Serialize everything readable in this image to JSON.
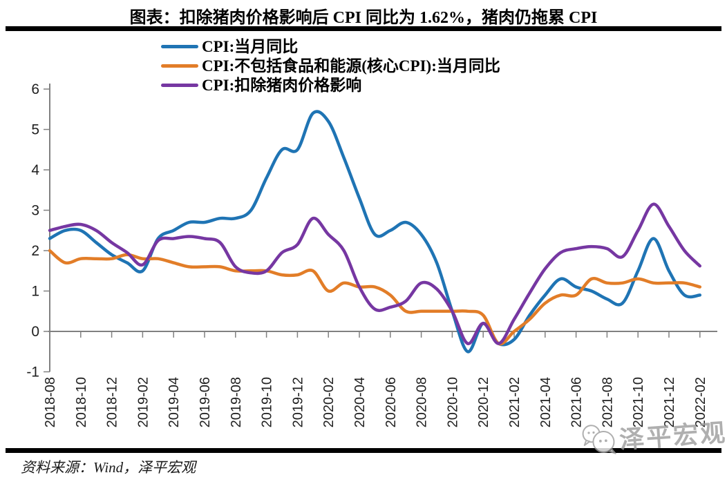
{
  "title": "图表：扣除猪肉价格影响后 CPI 同比为 1.62%，猪肉仍拖累 CPI",
  "source_note": "资料来源：Wind，泽平宏观",
  "watermark": {
    "icon": "wechat-chat-bubbles",
    "text": "泽平宏观"
  },
  "chart_data": {
    "type": "line",
    "title": "图表：扣除猪肉价格影响后 CPI 同比为 1.62%，猪肉仍拖累 CPI",
    "xlabel": "",
    "ylabel": "",
    "ylim": [
      -1,
      6
    ],
    "y_ticks": [
      6,
      5,
      4,
      3,
      2,
      1,
      0,
      -1
    ],
    "grid": false,
    "legend_position": "top-left",
    "x": [
      "2018-08",
      "2018-09",
      "2018-10",
      "2018-11",
      "2018-12",
      "2019-01",
      "2019-02",
      "2019-03",
      "2019-04",
      "2019-05",
      "2019-06",
      "2019-07",
      "2019-08",
      "2019-09",
      "2019-10",
      "2019-11",
      "2019-12",
      "2020-01",
      "2020-02",
      "2020-03",
      "2020-04",
      "2020-05",
      "2020-06",
      "2020-07",
      "2020-08",
      "2020-09",
      "2020-10",
      "2020-11",
      "2020-12",
      "2021-01",
      "2021-02",
      "2021-03",
      "2021-04",
      "2021-05",
      "2021-06",
      "2021-07",
      "2021-08",
      "2021-09",
      "2021-10",
      "2021-11",
      "2021-12",
      "2022-01",
      "2022-02"
    ],
    "x_tick_labels": [
      "2018-08",
      "2018-10",
      "2018-12",
      "2019-02",
      "2019-04",
      "2019-06",
      "2019-08",
      "2019-10",
      "2019-12",
      "2020-02",
      "2020-04",
      "2020-06",
      "2020-08",
      "2020-10",
      "2020-12",
      "2021-02",
      "2021-04",
      "2021-06",
      "2021-08",
      "2021-10",
      "2021-12",
      "2022-02"
    ],
    "series": [
      {
        "name": "CPI:当月同比",
        "color": "#1F74B4",
        "values": [
          2.3,
          2.5,
          2.5,
          2.2,
          1.9,
          1.7,
          1.5,
          2.3,
          2.5,
          2.7,
          2.7,
          2.8,
          2.8,
          3.0,
          3.8,
          4.5,
          4.5,
          5.4,
          5.2,
          4.3,
          3.3,
          2.4,
          2.5,
          2.7,
          2.4,
          1.7,
          0.5,
          -0.5,
          0.2,
          -0.3,
          -0.2,
          0.4,
          0.9,
          1.3,
          1.1,
          1.0,
          0.8,
          0.7,
          1.5,
          2.3,
          1.5,
          0.9,
          0.9
        ]
      },
      {
        "name": "CPI:不包括食品和能源(核心CPI):当月同比",
        "color": "#E27D28",
        "values": [
          2.0,
          1.7,
          1.8,
          1.8,
          1.8,
          1.9,
          1.8,
          1.8,
          1.7,
          1.6,
          1.6,
          1.6,
          1.5,
          1.5,
          1.5,
          1.4,
          1.4,
          1.5,
          1.0,
          1.2,
          1.1,
          1.1,
          0.9,
          0.5,
          0.5,
          0.5,
          0.5,
          0.5,
          0.4,
          -0.3,
          0.0,
          0.3,
          0.7,
          0.9,
          0.9,
          1.3,
          1.2,
          1.2,
          1.3,
          1.2,
          1.2,
          1.2,
          1.1
        ]
      },
      {
        "name": "CPI:扣除猪肉价格影响",
        "color": "#7637A2",
        "values": [
          2.5,
          2.6,
          2.65,
          2.5,
          2.2,
          1.95,
          1.65,
          2.25,
          2.3,
          2.35,
          2.3,
          2.2,
          1.6,
          1.45,
          1.5,
          1.95,
          2.15,
          2.8,
          2.4,
          2.0,
          1.1,
          0.55,
          0.6,
          0.75,
          1.2,
          1.05,
          0.5,
          -0.3,
          0.2,
          -0.3,
          0.3,
          0.95,
          1.55,
          1.95,
          2.05,
          2.1,
          2.05,
          1.85,
          2.5,
          3.15,
          2.6,
          2.0,
          1.62
        ]
      }
    ]
  }
}
